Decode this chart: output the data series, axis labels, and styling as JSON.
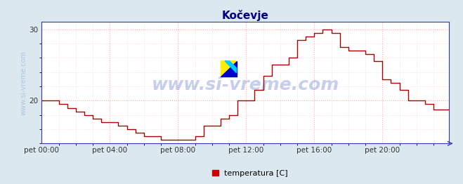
{
  "title": "Kočevje",
  "title_color": "#000080",
  "title_fontsize": 11,
  "background_color": "#dce8f0",
  "plot_bg_color": "#ffffff",
  "line_color": "#aa0000",
  "line_width": 1.0,
  "grid_color_major": "#ffaaaa",
  "grid_color_minor": "#ffd0d0",
  "ylabel": "www.si-vreme.com",
  "ylabel_color": "#aac8e0",
  "ylabel_fontsize": 7,
  "ylim": [
    14,
    31
  ],
  "yticks": [
    20,
    30
  ],
  "xlim": [
    0,
    287
  ],
  "xtick_positions": [
    0,
    48,
    96,
    144,
    192,
    240
  ],
  "xtick_labels": [
    "pet 00:00",
    "pet 04:00",
    "pet 08:00",
    "pet 12:00",
    "pet 16:00",
    "pet 20:00"
  ],
  "axis_color": "#3333cc",
  "legend_label": "temperatura [C]",
  "legend_color": "#cc0000",
  "watermark_text": "www.si-vreme.com",
  "watermark_color": "#3355bb",
  "watermark_alpha": 0.28,
  "watermark_fontsize": 18,
  "step_times": [
    0,
    12,
    18,
    24,
    30,
    36,
    42,
    48,
    54,
    60,
    66,
    72,
    84,
    96,
    102,
    108,
    114,
    120,
    126,
    132,
    138,
    144,
    150,
    156,
    162,
    168,
    174,
    180,
    186,
    192,
    198,
    204,
    210,
    216,
    228,
    234,
    240,
    246,
    252,
    258,
    264,
    270,
    276,
    287
  ],
  "step_temps": [
    20.0,
    19.5,
    19.0,
    18.5,
    18.0,
    17.5,
    17.0,
    17.0,
    16.5,
    16.0,
    15.5,
    15.0,
    14.5,
    14.5,
    14.5,
    15.0,
    16.5,
    16.5,
    17.5,
    18.0,
    20.0,
    20.0,
    21.5,
    23.5,
    25.0,
    25.0,
    26.0,
    28.5,
    29.0,
    29.5,
    30.0,
    29.5,
    27.5,
    27.0,
    26.5,
    25.5,
    23.0,
    22.5,
    21.5,
    20.0,
    20.0,
    19.5,
    18.8,
    18.8
  ]
}
